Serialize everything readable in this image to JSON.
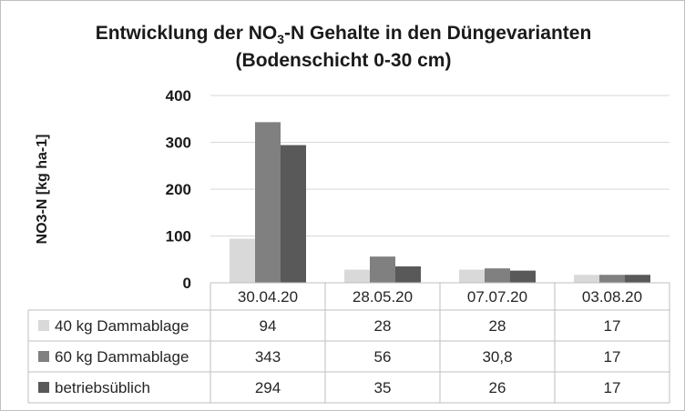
{
  "chart_data": {
    "type": "bar",
    "title_line1_pre": "Entwicklung der NO",
    "title_line1_sub": "3",
    "title_line1_post": "-N Gehalte in den Düngevarianten",
    "title_line2": "(Bodenschicht 0-30 cm)",
    "ylabel": "NO3-N [kg ha-1]",
    "xlabel": "",
    "ylim": [
      0,
      400
    ],
    "yticks": [
      "0",
      "100",
      "200",
      "300",
      "400"
    ],
    "grid": true,
    "legend": "data-table",
    "categories": [
      "30.04.20",
      "28.05.20",
      "07.07.20",
      "03.08.20"
    ],
    "series": [
      {
        "name": "40 kg Dammablage",
        "color": "#d9d9d9",
        "values": [
          94,
          28,
          28,
          17
        ],
        "labels": [
          "94",
          "28",
          "28",
          "17"
        ]
      },
      {
        "name": "60 kg Dammablage",
        "color": "#808080",
        "values": [
          343,
          56,
          30.8,
          17
        ],
        "labels": [
          "343",
          "56",
          "30,8",
          "17"
        ]
      },
      {
        "name": "betriebsüblich",
        "color": "#595959",
        "values": [
          294,
          35,
          26,
          17
        ],
        "labels": [
          "294",
          "35",
          "26",
          "17"
        ]
      }
    ]
  }
}
